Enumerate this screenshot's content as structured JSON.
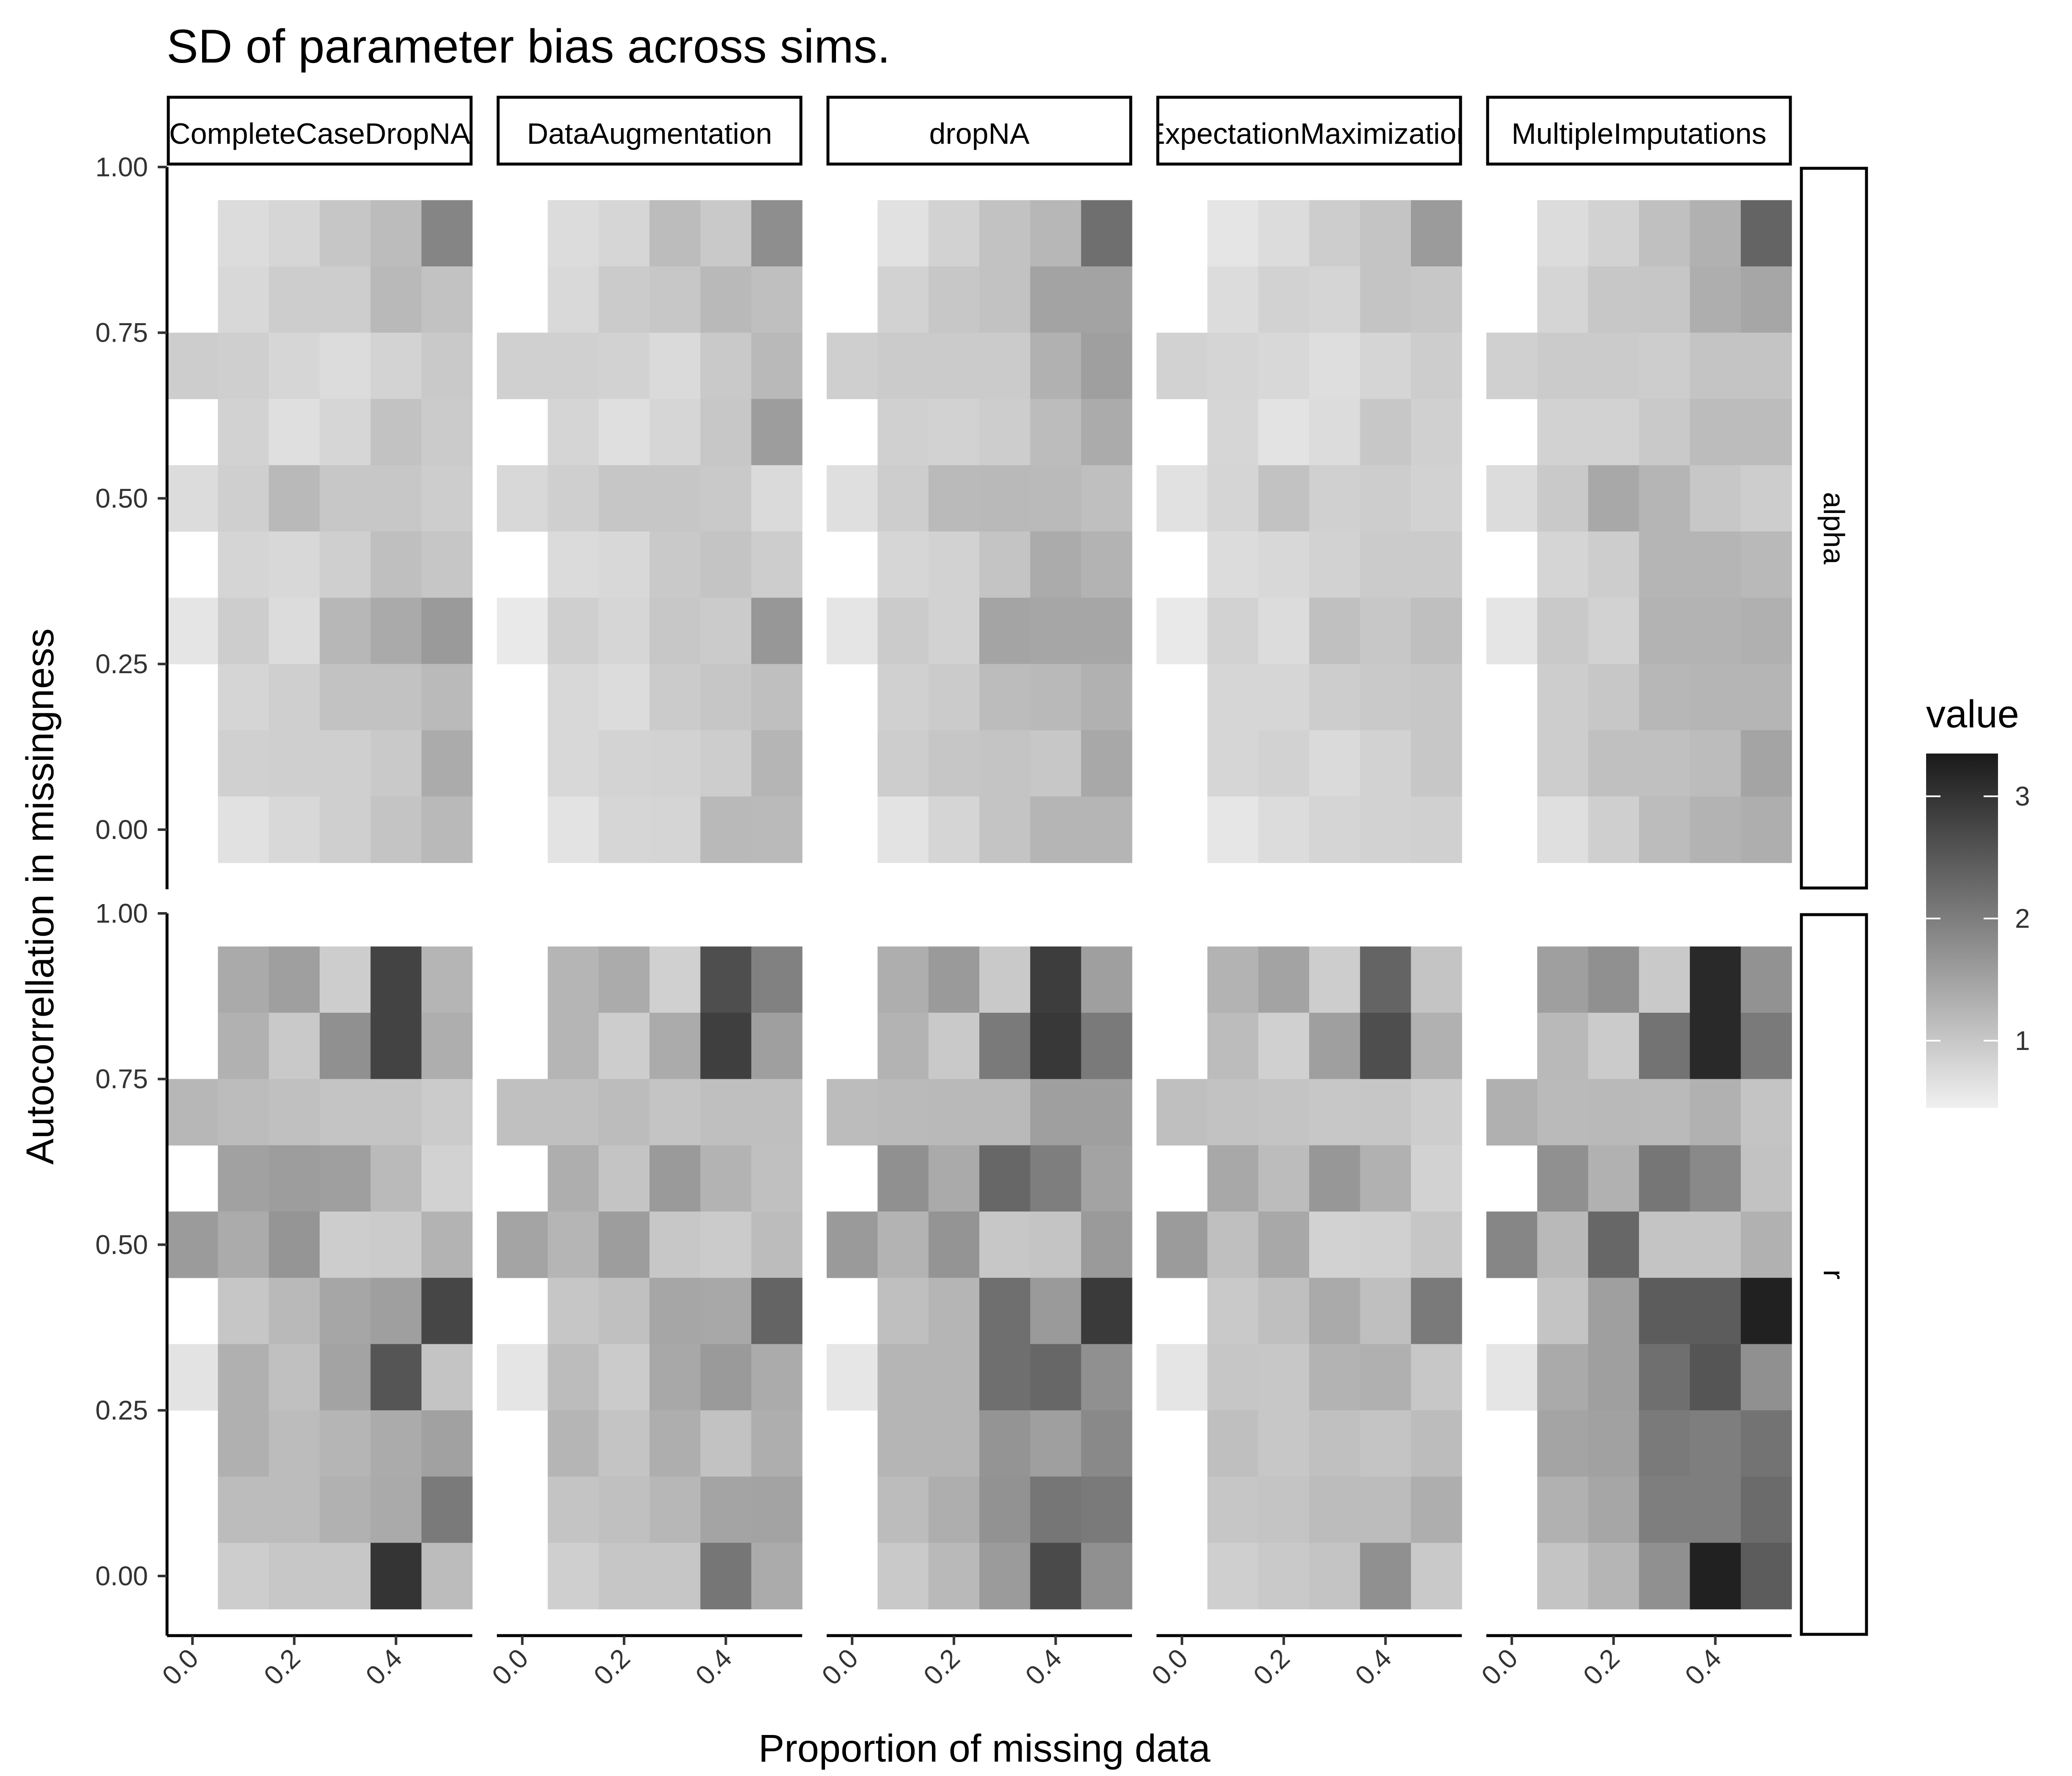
{
  "chart_data": {
    "type": "heatmap",
    "title": "SD of parameter bias across sims.",
    "xlabel": "Proportion of missing data",
    "ylabel": "Autocorrellation in missingness",
    "x_ticks": [
      "0.0",
      "0.2",
      "0.4"
    ],
    "y_ticks": [
      "0.00",
      "0.25",
      "0.50",
      "0.75",
      "1.00"
    ],
    "xlim": [
      -0.05,
      0.55
    ],
    "ylim": [
      -0.09,
      1.0
    ],
    "x_values": [
      0.0,
      0.1,
      0.2,
      0.3,
      0.4,
      0.5
    ],
    "y_values": [
      0.9,
      0.8,
      0.7,
      0.6,
      0.5,
      0.4,
      0.3,
      0.2,
      0.1,
      0.0
    ],
    "facet_columns": [
      "CompleteCaseDropNA",
      "DataAugmentation",
      "dropNA",
      "ExpectationMaximization",
      "MultipleImputations"
    ],
    "facet_rows": [
      "alpha",
      "r"
    ],
    "legend": {
      "title": "value",
      "ticks": [
        "1",
        "2",
        "3"
      ],
      "range": [
        0.45,
        3.35
      ],
      "colors": [
        "#f0f0f0",
        "#1a1a1a"
      ],
      "placement": "right"
    },
    "panels": [
      {
        "facet_col": "CompleteCaseDropNA",
        "facet_row": "alpha",
        "values": [
          [
            null,
            0.72,
            0.8,
            1.02,
            1.15,
            1.9
          ],
          [
            null,
            0.78,
            0.92,
            0.92,
            1.2,
            1.08
          ],
          [
            0.92,
            0.9,
            0.8,
            0.72,
            0.84,
            0.98
          ],
          [
            null,
            0.85,
            0.68,
            0.8,
            1.08,
            0.95
          ],
          [
            0.72,
            0.9,
            1.2,
            1.0,
            1.0,
            0.92
          ],
          [
            null,
            0.82,
            0.78,
            0.9,
            1.12,
            1.02
          ],
          [
            0.6,
            0.92,
            0.72,
            1.22,
            1.4,
            1.62
          ],
          [
            null,
            0.82,
            0.9,
            1.08,
            1.08,
            1.18
          ],
          [
            null,
            0.88,
            0.9,
            0.9,
            0.98,
            1.38
          ],
          [
            null,
            0.65,
            0.78,
            0.9,
            1.05,
            1.2
          ]
        ]
      },
      {
        "facet_col": "DataAugmentation",
        "facet_row": "alpha",
        "values": [
          [
            null,
            0.72,
            0.8,
            1.15,
            0.98,
            1.78
          ],
          [
            null,
            0.76,
            0.95,
            1.0,
            1.2,
            1.12
          ],
          [
            0.88,
            0.88,
            0.85,
            0.75,
            0.98,
            1.2
          ],
          [
            null,
            0.82,
            0.68,
            0.8,
            1.0,
            1.58
          ],
          [
            0.78,
            0.9,
            1.02,
            1.02,
            0.98,
            0.75
          ],
          [
            null,
            0.74,
            0.78,
            0.98,
            1.05,
            0.92
          ],
          [
            0.55,
            0.9,
            0.8,
            1.0,
            0.95,
            1.65
          ],
          [
            null,
            0.78,
            0.72,
            0.95,
            1.02,
            1.12
          ],
          [
            null,
            0.78,
            0.84,
            0.86,
            0.92,
            1.25
          ],
          [
            null,
            0.62,
            0.8,
            0.82,
            1.2,
            1.18
          ]
        ]
      },
      {
        "facet_col": "dropNA",
        "facet_row": "alpha",
        "values": [
          [
            null,
            0.65,
            0.85,
            1.08,
            1.22,
            2.2
          ],
          [
            null,
            0.85,
            1.0,
            1.08,
            1.5,
            1.5
          ],
          [
            0.9,
            0.95,
            0.95,
            0.95,
            1.3,
            1.55
          ],
          [
            null,
            0.88,
            0.85,
            0.92,
            1.15,
            1.38
          ],
          [
            0.68,
            0.92,
            1.18,
            1.2,
            1.18,
            1.12
          ],
          [
            null,
            0.8,
            0.85,
            1.05,
            1.38,
            1.28
          ],
          [
            0.6,
            0.95,
            0.85,
            1.48,
            1.45,
            1.45
          ],
          [
            null,
            0.88,
            0.95,
            1.15,
            1.2,
            1.3
          ],
          [
            null,
            0.92,
            1.02,
            1.05,
            1.0,
            1.42
          ],
          [
            null,
            0.62,
            0.82,
            1.05,
            1.25,
            1.25
          ]
        ]
      },
      {
        "facet_col": "ExpectationMaximization",
        "facet_row": "alpha",
        "values": [
          [
            null,
            0.6,
            0.72,
            0.92,
            1.05,
            1.6
          ],
          [
            null,
            0.72,
            0.85,
            0.82,
            1.05,
            1.0
          ],
          [
            0.85,
            0.82,
            0.78,
            0.7,
            0.82,
            0.92
          ],
          [
            null,
            0.8,
            0.62,
            0.72,
            1.0,
            0.88
          ],
          [
            0.66,
            0.82,
            1.08,
            0.88,
            0.92,
            0.85
          ],
          [
            null,
            0.72,
            0.78,
            0.85,
            0.95,
            0.95
          ],
          [
            0.55,
            0.85,
            0.72,
            1.1,
            1.0,
            1.12
          ],
          [
            null,
            0.8,
            0.8,
            0.92,
            0.98,
            1.0
          ],
          [
            null,
            0.8,
            0.85,
            0.75,
            0.85,
            1.0
          ],
          [
            null,
            0.58,
            0.72,
            0.82,
            0.85,
            0.88
          ]
        ]
      },
      {
        "facet_col": "MultipleImputations",
        "facet_row": "alpha",
        "values": [
          [
            null,
            0.72,
            0.85,
            1.1,
            1.3,
            2.35
          ],
          [
            null,
            0.82,
            1.0,
            1.02,
            1.35,
            1.45
          ],
          [
            0.88,
            0.95,
            0.95,
            0.92,
            1.05,
            1.05
          ],
          [
            null,
            0.85,
            0.85,
            0.98,
            1.15,
            1.15
          ],
          [
            0.72,
            0.98,
            1.42,
            1.25,
            1.0,
            0.92
          ],
          [
            null,
            0.82,
            0.92,
            1.25,
            1.25,
            1.2
          ],
          [
            0.6,
            0.98,
            0.85,
            1.28,
            1.28,
            1.32
          ],
          [
            null,
            0.92,
            1.0,
            1.22,
            1.25,
            1.25
          ],
          [
            null,
            0.92,
            1.1,
            1.1,
            1.15,
            1.48
          ],
          [
            null,
            0.68,
            0.9,
            1.15,
            1.28,
            1.35
          ]
        ]
      },
      {
        "facet_col": "CompleteCaseDropNA",
        "facet_row": "r",
        "values": [
          [
            null,
            1.4,
            1.55,
            0.92,
            2.8,
            1.25
          ],
          [
            null,
            1.3,
            0.98,
            1.75,
            2.8,
            1.35
          ],
          [
            1.22,
            1.15,
            1.1,
            1.05,
            1.05,
            0.95
          ],
          [
            null,
            1.52,
            1.58,
            1.55,
            1.18,
            0.85
          ],
          [
            1.6,
            1.38,
            1.68,
            0.92,
            0.95,
            1.28
          ],
          [
            null,
            1.02,
            1.2,
            1.45,
            1.55,
            2.75
          ],
          [
            0.62,
            1.32,
            1.1,
            1.5,
            2.55,
            1.05
          ],
          [
            null,
            1.32,
            1.15,
            1.25,
            1.38,
            1.52
          ],
          [
            null,
            1.15,
            1.15,
            1.3,
            1.4,
            2.05
          ],
          [
            null,
            0.92,
            1.0,
            1.0,
            3.0,
            1.15
          ]
        ]
      },
      {
        "facet_col": "DataAugmentation",
        "facet_row": "r",
        "values": [
          [
            null,
            1.25,
            1.38,
            0.88,
            2.65,
            1.95
          ],
          [
            null,
            1.25,
            0.92,
            1.38,
            2.85,
            1.55
          ],
          [
            1.1,
            1.1,
            1.15,
            1.05,
            1.12,
            1.12
          ],
          [
            null,
            1.35,
            1.05,
            1.62,
            1.28,
            1.1
          ],
          [
            1.48,
            1.25,
            1.58,
            1.0,
            0.95,
            1.15
          ],
          [
            null,
            1.02,
            1.1,
            1.45,
            1.42,
            2.35
          ],
          [
            0.6,
            1.15,
            0.95,
            1.42,
            1.62,
            1.38
          ],
          [
            null,
            1.25,
            1.05,
            1.35,
            1.08,
            1.35
          ],
          [
            null,
            1.05,
            1.1,
            1.22,
            1.48,
            1.5
          ],
          [
            null,
            0.9,
            1.02,
            1.02,
            2.1,
            1.38
          ]
        ]
      },
      {
        "facet_col": "dropNA",
        "facet_row": "r",
        "values": [
          [
            null,
            1.35,
            1.62,
            0.98,
            2.88,
            1.55
          ],
          [
            null,
            1.28,
            0.98,
            2.05,
            2.95,
            2.05
          ],
          [
            1.15,
            1.18,
            1.2,
            1.2,
            1.55,
            1.55
          ],
          [
            null,
            1.75,
            1.4,
            2.3,
            2.0,
            1.5
          ],
          [
            1.62,
            1.28,
            1.7,
            1.0,
            1.05,
            1.62
          ],
          [
            null,
            1.12,
            1.25,
            2.2,
            1.62,
            2.92
          ],
          [
            0.58,
            1.25,
            1.25,
            2.2,
            2.3,
            1.75
          ],
          [
            null,
            1.25,
            1.25,
            1.7,
            1.55,
            1.85
          ],
          [
            null,
            1.15,
            1.35,
            1.72,
            2.1,
            2.05
          ],
          [
            null,
            0.98,
            1.2,
            1.6,
            2.7,
            1.75
          ]
        ]
      },
      {
        "facet_col": "ExpectationMaximization",
        "facet_row": "r",
        "values": [
          [
            null,
            1.28,
            1.5,
            0.92,
            2.35,
            1.05
          ],
          [
            null,
            1.15,
            0.88,
            1.55,
            2.65,
            1.3
          ],
          [
            1.12,
            1.08,
            1.05,
            1.0,
            1.02,
            0.92
          ],
          [
            null,
            1.42,
            1.15,
            1.65,
            1.3,
            0.85
          ],
          [
            1.6,
            1.12,
            1.42,
            0.85,
            0.88,
            1.02
          ],
          [
            null,
            0.98,
            1.12,
            1.4,
            1.12,
            2.05
          ],
          [
            0.6,
            1.02,
            1.0,
            1.28,
            1.32,
            1.0
          ],
          [
            null,
            1.12,
            1.0,
            1.1,
            1.05,
            1.15
          ],
          [
            null,
            1.02,
            1.05,
            1.15,
            1.15,
            1.35
          ],
          [
            null,
            0.9,
            0.98,
            1.05,
            1.75,
            0.98
          ]
        ]
      },
      {
        "facet_col": "MultipleImputations",
        "facet_row": "r",
        "values": [
          [
            null,
            1.55,
            1.75,
            0.98,
            3.15,
            1.72
          ],
          [
            null,
            1.2,
            0.95,
            2.15,
            3.15,
            2.05
          ],
          [
            1.32,
            1.18,
            1.2,
            1.18,
            1.3,
            1.05
          ],
          [
            null,
            1.75,
            1.3,
            2.1,
            1.85,
            1.08
          ],
          [
            1.88,
            1.2,
            2.3,
            1.05,
            1.05,
            1.3
          ],
          [
            null,
            1.05,
            1.55,
            2.45,
            2.45,
            3.25
          ],
          [
            0.6,
            1.4,
            1.55,
            2.2,
            2.55,
            1.75
          ],
          [
            null,
            1.48,
            1.52,
            2.05,
            2.0,
            2.15
          ],
          [
            null,
            1.3,
            1.45,
            2.0,
            2.0,
            2.25
          ],
          [
            null,
            1.05,
            1.25,
            1.75,
            3.25,
            2.45
          ]
        ]
      }
    ]
  }
}
